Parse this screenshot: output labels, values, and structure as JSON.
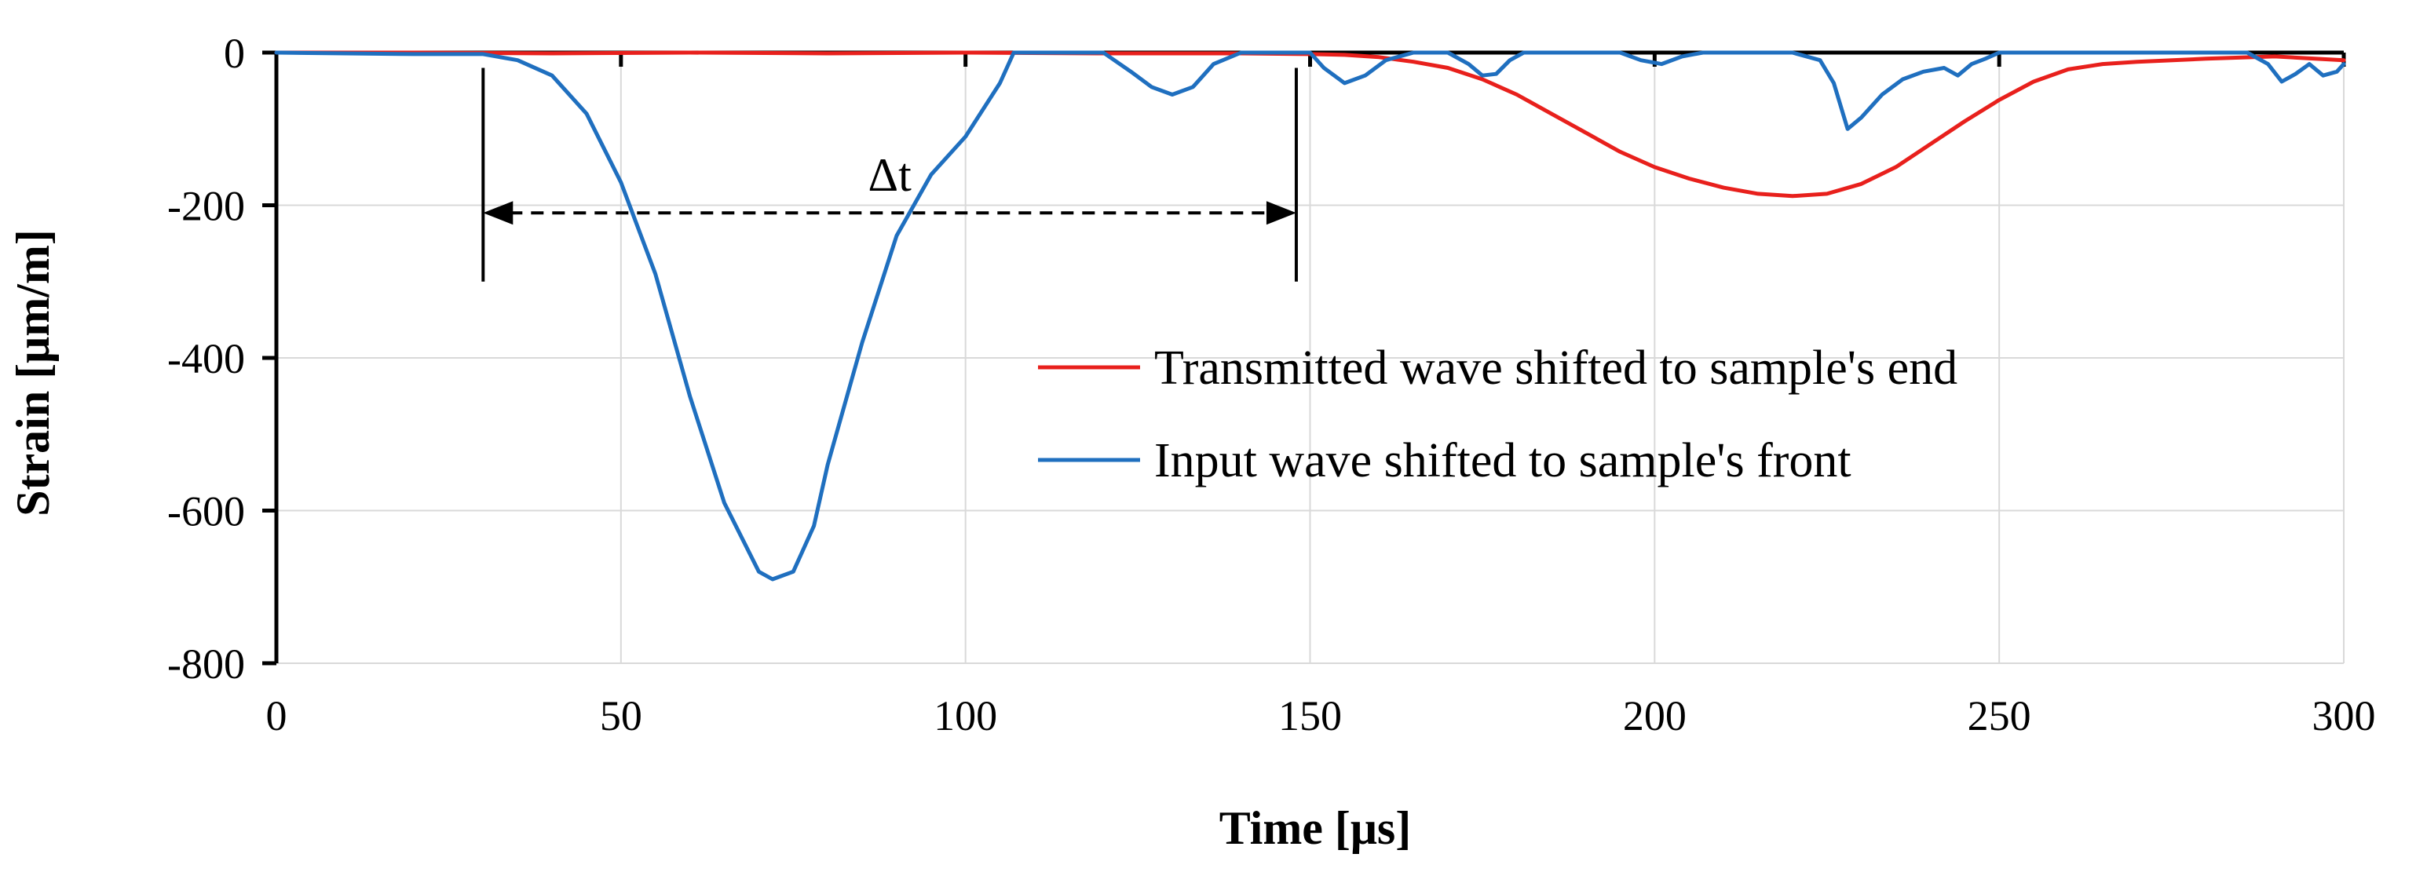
{
  "chart_data": {
    "type": "line",
    "title": "",
    "xlabel": "Time [μs]",
    "ylabel": "Strain [μm/m]",
    "xlim": [
      0,
      300
    ],
    "ylim": [
      -800,
      0
    ],
    "xticks": [
      "0",
      "50",
      "100",
      "150",
      "200",
      "250",
      "300"
    ],
    "yticks": [
      "0",
      "-200",
      "-400",
      "-600",
      "-800"
    ],
    "grid": true,
    "legend_position": "center-right",
    "series": [
      {
        "name": "Transmitted wave shifted to sample's end",
        "color": "#e8201c",
        "x": [
          0,
          20,
          40,
          60,
          80,
          100,
          120,
          140,
          150,
          155,
          160,
          165,
          170,
          175,
          180,
          185,
          190,
          195,
          200,
          205,
          210,
          215,
          220,
          225,
          230,
          235,
          240,
          245,
          250,
          255,
          260,
          265,
          270,
          280,
          290,
          300
        ],
        "y": [
          0,
          0,
          -1,
          0,
          -1,
          0,
          -1,
          -1,
          -2,
          -3,
          -6,
          -12,
          -20,
          -35,
          -55,
          -80,
          -105,
          -130,
          -150,
          -165,
          -177,
          -185,
          -188,
          -185,
          -172,
          -150,
          -120,
          -90,
          -62,
          -38,
          -22,
          -15,
          -12,
          -8,
          -5,
          -10
        ]
      },
      {
        "name": "Input wave shifted to sample's front",
        "color": "#1f6fbf",
        "x": [
          0,
          20,
          30,
          35,
          40,
          45,
          50,
          55,
          60,
          65,
          70,
          72,
          75,
          78,
          80,
          85,
          90,
          95,
          100,
          105,
          107,
          110,
          115,
          120,
          124,
          127,
          130,
          133,
          136,
          140,
          145,
          150,
          152,
          155,
          158,
          161,
          165,
          170,
          173,
          175,
          177,
          179,
          181,
          185,
          190,
          195,
          198,
          201,
          204,
          207,
          210,
          215,
          220,
          224,
          226,
          228,
          230,
          233,
          236,
          239,
          242,
          244,
          246,
          248,
          250,
          255,
          260,
          270,
          280,
          286,
          289,
          291,
          293,
          295,
          297,
          299,
          300
        ],
        "y": [
          0,
          -2,
          -2,
          -10,
          -30,
          -80,
          -170,
          -290,
          -450,
          -590,
          -680,
          -690,
          -680,
          -620,
          -540,
          -380,
          -240,
          -160,
          -110,
          -40,
          0,
          0,
          0,
          0,
          -25,
          -45,
          -55,
          -45,
          -15,
          0,
          0,
          0,
          -20,
          -40,
          -30,
          -10,
          0,
          0,
          -15,
          -30,
          -28,
          -10,
          0,
          0,
          0,
          0,
          -10,
          -15,
          -5,
          0,
          0,
          0,
          0,
          -10,
          -40,
          -100,
          -85,
          -55,
          -35,
          -25,
          -20,
          -30,
          -15,
          -8,
          0,
          0,
          0,
          0,
          0,
          0,
          -15,
          -38,
          -28,
          -15,
          -30,
          -25,
          -15
        ]
      }
    ],
    "annotations": [
      {
        "text": "Δt",
        "type": "double-arrow",
        "from_x": 30,
        "to_x": 148,
        "at_y": -210,
        "marker_lines": [
          30,
          148
        ],
        "marker_range_y": [
          -20,
          -300
        ]
      }
    ]
  }
}
